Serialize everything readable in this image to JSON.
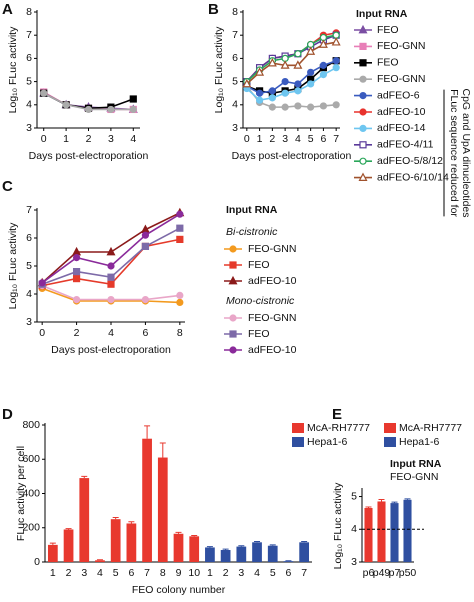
{
  "chart_data": [
    {
      "type": "line",
      "panel": "A",
      "xlabel": "Days post-electroporation",
      "ylabel": "Log₁₀ FLuc activity",
      "x": [
        0,
        1,
        2,
        3,
        4
      ],
      "xlim": [
        -0.3,
        4.3
      ],
      "xticks": [
        0,
        1,
        2,
        3,
        4
      ],
      "ylim": [
        3,
        8
      ],
      "yticks": [
        3,
        4,
        5,
        6,
        7,
        8
      ],
      "series": [
        {
          "name": "FEO",
          "color": "#7b4ea3",
          "marker": "triangle",
          "values": [
            4.5,
            4.0,
            3.9,
            3.85,
            3.8
          ]
        },
        {
          "name": "FEO-GNN",
          "color": "#e87fb8",
          "marker": "square",
          "values": [
            4.55,
            4.0,
            3.85,
            3.8,
            3.8
          ]
        },
        {
          "color": "#000000",
          "marker": "square",
          "values": [
            4.5,
            4.0,
            3.85,
            3.9,
            4.25
          ]
        },
        {
          "color": "#aaaaaa",
          "marker": "circle",
          "values": [
            4.5,
            4.0,
            3.8,
            3.8,
            3.8
          ]
        }
      ]
    },
    {
      "type": "line",
      "panel": "B",
      "xlabel": "Days post-electroporation",
      "ylabel": "Log₁₀ FLuc activity",
      "legend_title": "Input RNA",
      "side_note": [
        "FLuc sequence reduced for",
        "CpG and UpA dinucleotides"
      ],
      "x": [
        0,
        1,
        2,
        3,
        4,
        5,
        6,
        7
      ],
      "xlim": [
        -0.3,
        7.3
      ],
      "xticks": [
        0,
        1,
        2,
        3,
        4,
        5,
        6,
        7
      ],
      "ylim": [
        3,
        8
      ],
      "yticks": [
        3,
        4,
        5,
        6,
        7,
        8
      ],
      "series": [
        {
          "name": "FEO",
          "color": "#000000",
          "marker": "square",
          "values": [
            4.8,
            4.6,
            4.5,
            4.6,
            4.7,
            5.1,
            5.6,
            5.9
          ]
        },
        {
          "name": "FEO-GNN",
          "color": "#aaaaaa",
          "marker": "circle",
          "values": [
            4.8,
            4.1,
            3.9,
            3.9,
            3.95,
            3.9,
            3.95,
            4.0
          ]
        },
        {
          "name": "adFEO-6",
          "color": "#3a5bbf",
          "marker": "circle",
          "values": [
            4.8,
            4.5,
            4.6,
            5.0,
            4.9,
            5.4,
            5.7,
            5.9
          ]
        },
        {
          "name": "adFEO-10",
          "color": "#e8322d",
          "marker": "circle",
          "values": [
            5.0,
            5.6,
            6.0,
            6.1,
            6.2,
            6.6,
            7.0,
            7.1
          ]
        },
        {
          "name": "adFEO-14",
          "color": "#6ec6f0",
          "marker": "circle",
          "values": [
            4.7,
            4.2,
            4.3,
            4.5,
            4.6,
            4.9,
            5.3,
            5.6
          ]
        },
        {
          "name": "adFEO-4/11",
          "color": "#5a3a9a",
          "marker": "open-square",
          "values": [
            5.0,
            5.6,
            6.0,
            6.1,
            6.2,
            6.5,
            6.8,
            7.0
          ]
        },
        {
          "name": "adFEO-5/8/12",
          "color": "#2aa65a",
          "marker": "open-circle",
          "values": [
            5.0,
            5.5,
            5.9,
            6.0,
            6.2,
            6.6,
            6.9,
            7.0
          ]
        },
        {
          "name": "adFEO-6/10/14",
          "color": "#a0522d",
          "marker": "open-triangle",
          "values": [
            4.9,
            5.4,
            5.8,
            5.7,
            5.7,
            6.3,
            6.6,
            6.7
          ]
        }
      ]
    },
    {
      "type": "line",
      "panel": "C",
      "xlabel": "Days post-electroporation",
      "ylabel": "Log₁₀ FLuc activity",
      "legend_title": "Input RNA",
      "x": [
        0,
        2,
        4,
        6,
        8
      ],
      "xlim": [
        -0.3,
        8.3
      ],
      "xticks": [
        0,
        2,
        4,
        6,
        8
      ],
      "ylim": [
        3,
        7
      ],
      "yticks": [
        3,
        4,
        5,
        6,
        7
      ],
      "series_groups": [
        {
          "title": "Bi-cistronic",
          "series": [
            {
              "name": "FEO-GNN",
              "color": "#f39a1f",
              "marker": "circle",
              "values": [
                4.2,
                3.75,
                3.75,
                3.75,
                3.7
              ]
            },
            {
              "name": "FEO",
              "color": "#e53a2a",
              "marker": "square",
              "values": [
                4.3,
                4.55,
                4.35,
                5.7,
                5.95
              ]
            },
            {
              "name": "adFEO-10",
              "color": "#8b1a1a",
              "marker": "triangle",
              "values": [
                4.4,
                5.5,
                5.5,
                6.3,
                6.9
              ]
            }
          ]
        },
        {
          "title": "Mono-cistronic",
          "series": [
            {
              "name": "FEO-GNN",
              "color": "#e9a6c8",
              "marker": "circle",
              "values": [
                4.3,
                3.8,
                3.8,
                3.8,
                3.95
              ]
            },
            {
              "name": "FEO",
              "color": "#7d6aa8",
              "marker": "square",
              "values": [
                4.35,
                4.8,
                4.6,
                5.7,
                6.35
              ]
            },
            {
              "name": "adFEO-10",
              "color": "#8a2a9a",
              "marker": "circle",
              "values": [
                4.4,
                5.3,
                5.0,
                6.1,
                6.85
              ]
            }
          ]
        }
      ]
    },
    {
      "type": "bar",
      "panel": "D",
      "xlabel": "FEO colony number",
      "ylabel": "FLuc activity per cell",
      "categories": [
        "1",
        "2",
        "3",
        "4",
        "5",
        "6",
        "7",
        "8",
        "9",
        "10",
        "1",
        "2",
        "3",
        "4",
        "5",
        "6",
        "7"
      ],
      "ylim": [
        0,
        800
      ],
      "yticks": [
        0,
        200,
        400,
        600,
        800
      ],
      "series": [
        {
          "name": "McA-RH7777",
          "color": "#e8382e",
          "values": [
            100,
            190,
            490,
            10,
            250,
            225,
            720,
            610,
            165,
            150,
            null,
            null,
            null,
            null,
            null,
            null,
            null
          ],
          "errors": [
            10,
            5,
            10,
            3,
            10,
            10,
            75,
            85,
            8,
            5,
            null,
            null,
            null,
            null,
            null,
            null,
            null
          ]
        },
        {
          "name": "Hepa1-6",
          "color": "#2f4fa0",
          "values": [
            null,
            null,
            null,
            null,
            null,
            null,
            null,
            null,
            null,
            null,
            85,
            70,
            90,
            115,
            95,
            5,
            115
          ],
          "errors": [
            null,
            null,
            null,
            null,
            null,
            null,
            null,
            null,
            null,
            null,
            5,
            5,
            5,
            5,
            5,
            2,
            5
          ]
        }
      ]
    },
    {
      "type": "bar",
      "panel": "E",
      "ylabel": "Log₁₀ FLuc activity",
      "annotations": [
        "Input RNA",
        "FEO-GNN"
      ],
      "categories": [
        "p6",
        "p49",
        "p7",
        "p50"
      ],
      "ylim": [
        3,
        5.2
      ],
      "yticks": [
        3,
        4,
        5
      ],
      "hline": 4,
      "series": [
        {
          "name": "McA-RH7777",
          "color": "#e8382e",
          "values": [
            4.65,
            4.85,
            null,
            null
          ],
          "errors": [
            0.03,
            0.06,
            null,
            null
          ]
        },
        {
          "name": "Hepa1-6",
          "color": "#2f4fa0",
          "values": [
            null,
            null,
            4.8,
            4.9
          ],
          "errors": [
            null,
            null,
            0.03,
            0.03
          ]
        }
      ]
    }
  ]
}
